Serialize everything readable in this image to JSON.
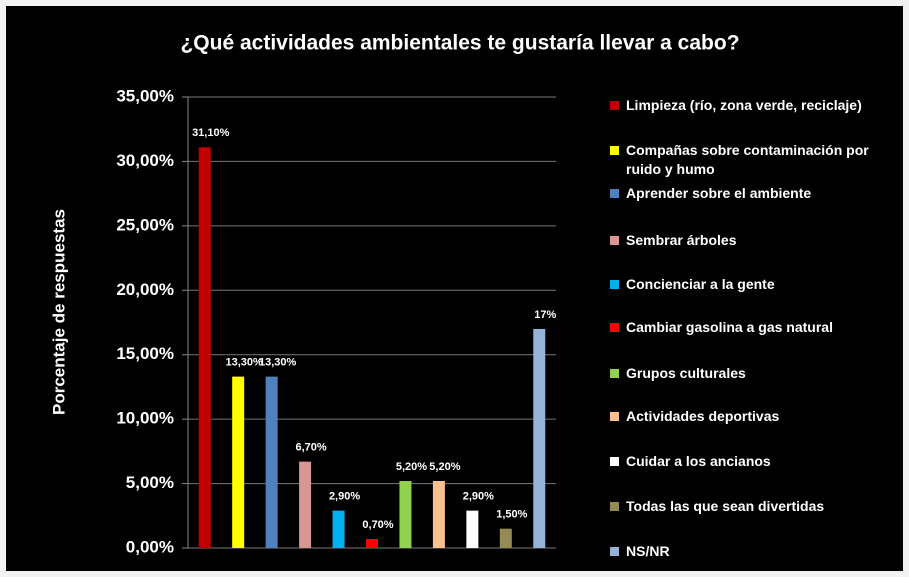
{
  "chart_data": {
    "type": "bar",
    "title": "¿Qué actividades ambientales te gustaría llevar a cabo?",
    "y_label": "Porcentaje de respuestas",
    "categories": [
      "Limpieza (río, zona verde, reciclaje)",
      "Compañas sobre contaminación por ruido y humo",
      "Aprender sobre el ambiente",
      "Sembrar árboles",
      "Concienciar a la gente",
      "Cambiar gasolina a gas natural",
      "Grupos culturales",
      "Actividades deportivas",
      "Cuidar a los ancianos",
      "Todas las que sean divertidas",
      "NS/NR"
    ],
    "values": [
      31.1,
      13.3,
      13.3,
      6.7,
      2.9,
      0.7,
      5.2,
      5.2,
      2.9,
      1.5,
      17
    ],
    "value_labels": [
      "31,10%",
      "13,30%",
      "13,30%",
      "6,70%",
      "2,90%",
      "0,70%",
      "5,20%",
      "5,20%",
      "2,90%",
      "1,50%",
      "17%"
    ],
    "colors": [
      "#c00000",
      "#ffff00",
      "#4f81bd",
      "#d99694",
      "#00b0f0",
      "#ff0000",
      "#92d050",
      "#fac090",
      "#ffffff",
      "#948a54",
      "#95b3d7"
    ],
    "ylim": [
      0,
      35
    ],
    "yticks": [
      {
        "value": 0,
        "label": "0,00%"
      },
      {
        "value": 5,
        "label": "5,00%"
      },
      {
        "value": 10,
        "label": "10,00%"
      },
      {
        "value": 15,
        "label": "15,00%"
      },
      {
        "value": 20,
        "label": "20,00%"
      },
      {
        "value": 25,
        "label": "25,00%"
      },
      {
        "value": 30,
        "label": "30,00%"
      },
      {
        "value": 35,
        "label": "35,00%"
      }
    ],
    "grid": true,
    "legend": "right"
  }
}
